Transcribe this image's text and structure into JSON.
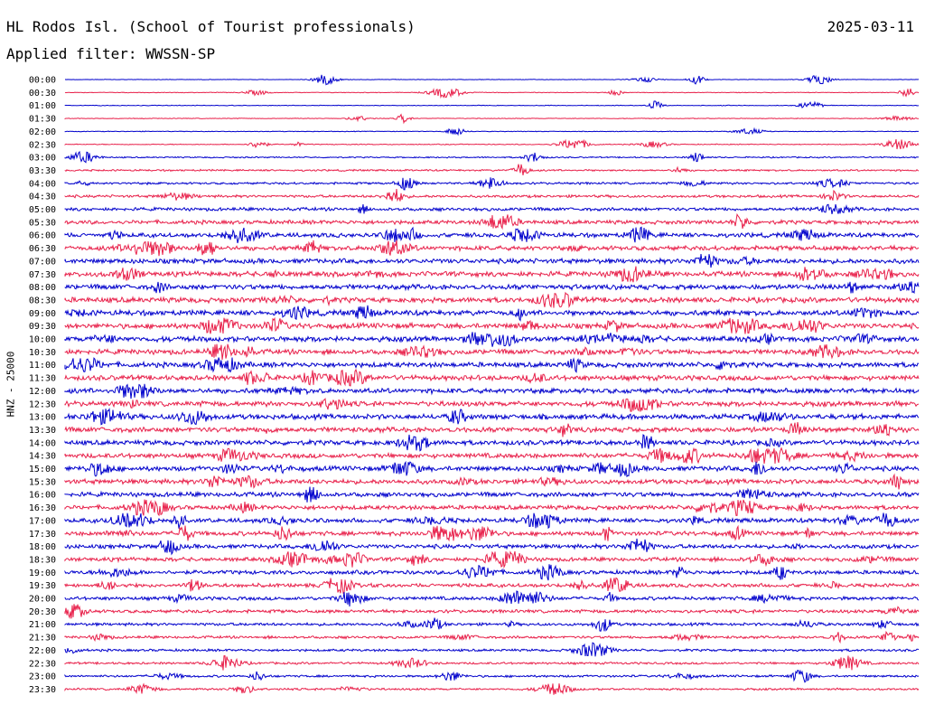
{
  "header": {
    "station": "HL Rodos Isl. (School of Tourist professionals)",
    "date": "2025-03-11",
    "filter": "Applied filter: WWSSN-SP"
  },
  "chart_data": {
    "type": "line",
    "title": "HL Rodos Isl. (School of Tourist professionals)",
    "subtitle": "Applied filter: WWSSN-SP",
    "ylabel": "HNZ - 25000",
    "xlabel": "",
    "legend": "none",
    "grid": false,
    "row_labels": [
      "00:00",
      "00:30",
      "01:00",
      "01:30",
      "02:00",
      "02:30",
      "03:00",
      "03:30",
      "04:00",
      "04:30",
      "05:00",
      "05:30",
      "06:00",
      "06:30",
      "07:00",
      "07:30",
      "08:00",
      "08:30",
      "09:00",
      "09:30",
      "10:00",
      "10:30",
      "11:00",
      "11:30",
      "12:00",
      "12:30",
      "13:00",
      "13:30",
      "14:00",
      "14:30",
      "15:00",
      "15:30",
      "16:00",
      "16:30",
      "17:00",
      "17:30",
      "18:00",
      "18:30",
      "19:00",
      "19:30",
      "20:00",
      "20:30",
      "21:00",
      "21:30",
      "22:00",
      "22:30",
      "23:00",
      "23:30"
    ],
    "row_colors": [
      "#0000cc",
      "#e8204a"
    ],
    "noise_level": [
      0.2,
      0.3,
      0.3,
      0.3,
      0.3,
      0.4,
      0.6,
      0.8,
      1.0,
      1.2,
      1.5,
      1.8,
      2.0,
      2.1,
      2.2,
      2.3,
      2.3,
      2.4,
      2.4,
      2.4,
      2.4,
      2.3,
      2.3,
      2.3,
      2.3,
      2.3,
      2.3,
      2.3,
      2.2,
      2.2,
      2.2,
      2.2,
      2.1,
      2.0,
      2.0,
      2.0,
      1.9,
      1.8,
      1.8,
      1.7,
      1.6,
      1.5,
      1.3,
      1.2,
      1.1,
      1.0,
      1.0,
      0.9
    ]
  }
}
